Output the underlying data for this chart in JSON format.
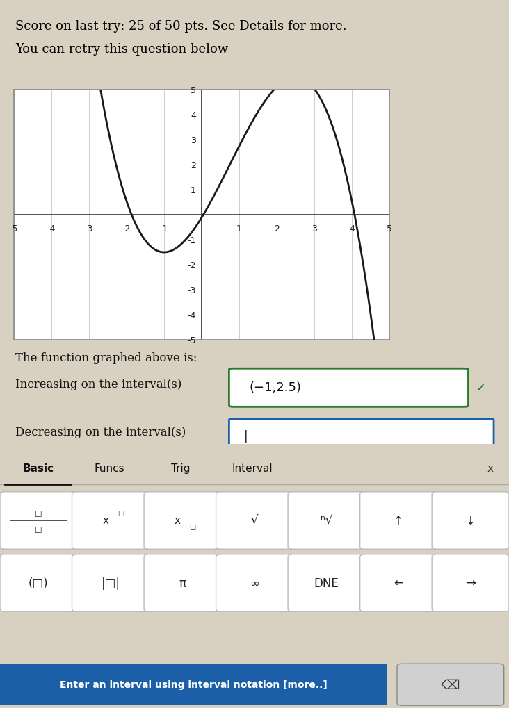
{
  "title_line1": "Score on last try: 25 of 50 pts. See Details for more.",
  "title_line2": "You can retry this question below",
  "title_bg": "#e8e0c8",
  "page_bg": "#d8d0c0",
  "graph_bg": "#ffffff",
  "curve_color": "#1a1a1a",
  "curve_lw": 2.0,
  "xlim": [
    -5,
    5
  ],
  "ylim": [
    -5,
    5
  ],
  "xticks": [
    -5,
    -4,
    -3,
    -2,
    -1,
    1,
    2,
    3,
    4,
    5
  ],
  "yticks": [
    -5,
    -4,
    -3,
    -2,
    -1,
    1,
    2,
    3,
    4,
    5
  ],
  "text_function": "The function graphed above is:",
  "label_increasing": "Increasing on the interval(s)",
  "label_decreasing": "Decreasing on the interval(s)",
  "answer_increasing": "(−1,2.5)",
  "answer_box_color_increasing": "#2d7a2d",
  "answer_box_color_decreasing": "#1a5fa8",
  "keyboard_tabs": [
    "Basic",
    "Funcs",
    "Trig",
    "Interval"
  ],
  "keyboard_active_tab": "Basic",
  "footer_text": "Enter an interval using interval notation [more..]",
  "footer_bg": "#1a5fa8",
  "footer_fg": "#ffffff",
  "backspace_symbol": "⌫",
  "close_x": "x",
  "cursor_symbol": "|",
  "checkmark": "✓"
}
